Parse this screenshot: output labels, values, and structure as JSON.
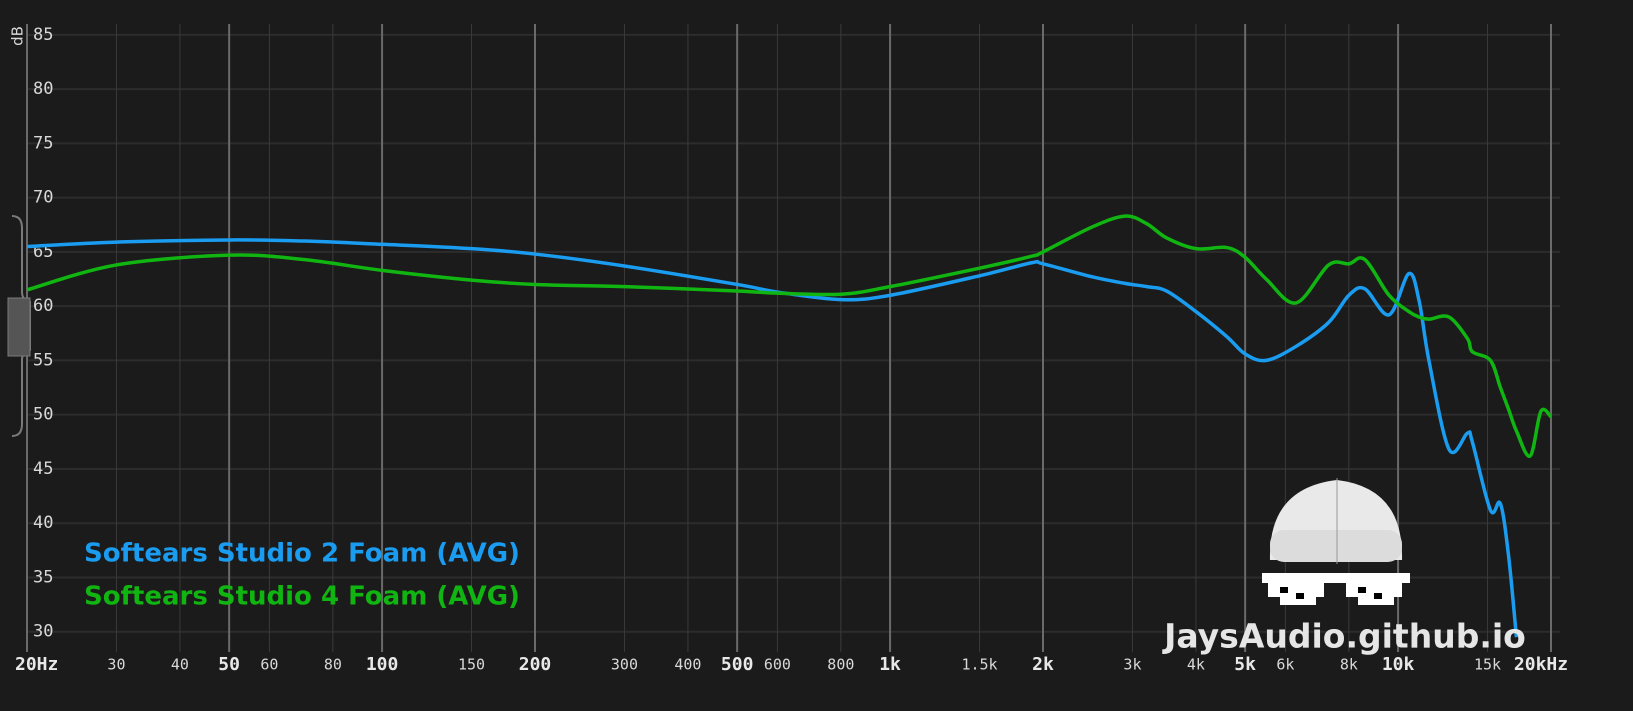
{
  "chart_data": {
    "type": "line",
    "y_label": "dB",
    "x_scale": "log",
    "grid": true,
    "legend": "bottom-left",
    "watermark": "JaysAudio.github.io",
    "xlim": [
      20,
      20000
    ],
    "ylim": [
      28.5,
      86
    ],
    "yticks": [
      30,
      35,
      40,
      45,
      50,
      55,
      60,
      65,
      70,
      75,
      80,
      85
    ],
    "xticks": [
      {
        "value": 20,
        "label": "20Hz"
      },
      30,
      40,
      50,
      60,
      80,
      100,
      150,
      200,
      300,
      400,
      500,
      600,
      800,
      {
        "value": 1000,
        "label": "1k"
      },
      {
        "value": 1500,
        "label": "1.5k"
      },
      {
        "value": 2000,
        "label": "2k"
      },
      {
        "value": 3000,
        "label": "3k"
      },
      {
        "value": 4000,
        "label": "4k"
      },
      {
        "value": 5000,
        "label": "5k"
      },
      {
        "value": 6000,
        "label": "6k"
      },
      {
        "value": 8000,
        "label": "8k"
      },
      {
        "value": 10000,
        "label": "10k"
      },
      {
        "value": 15000,
        "label": "15k"
      },
      {
        "value": 20000,
        "label": "20kHz"
      }
    ],
    "major_xticks": [
      20,
      50,
      100,
      200,
      500,
      1000,
      2000,
      5000,
      10000,
      20000
    ],
    "x": [
      20,
      30,
      50,
      70,
      100,
      150,
      200,
      300,
      500,
      600,
      800,
      1000,
      1500,
      1900,
      2000,
      2500,
      2900,
      3200,
      3500,
      4000,
      4600,
      5000,
      5500,
      6300,
      7300,
      8000,
      8600,
      9600,
      10500,
      11000,
      11500,
      12600,
      13700,
      14000,
      15200,
      15900,
      16500,
      17100,
      18200,
      19100,
      20000
    ],
    "series": [
      {
        "name": "Softears Studio 2 Foam (AVG)",
        "color": "#1a9cf0",
        "values": [
          65.5,
          65.9,
          66.1,
          66.0,
          65.7,
          65.3,
          64.8,
          63.7,
          62.0,
          61.3,
          60.6,
          61.0,
          62.8,
          64.0,
          63.9,
          62.7,
          62.1,
          61.8,
          61.4,
          59.5,
          57.2,
          55.6,
          55.0,
          56.3,
          58.5,
          61.0,
          61.6,
          59.2,
          63.0,
          60.5,
          55.0,
          46.8,
          48.3,
          47.5,
          41.2,
          41.8,
          37.0,
          29.5,
          null,
          null,
          null
        ]
      },
      {
        "name": "Softears Studio 4 Foam (AVG)",
        "color": "#11b511",
        "values": [
          61.5,
          63.8,
          64.7,
          64.3,
          63.3,
          62.4,
          62.0,
          61.8,
          61.4,
          61.2,
          61.1,
          61.8,
          63.5,
          64.6,
          65.0,
          67.3,
          68.3,
          67.6,
          66.3,
          65.3,
          65.4,
          64.5,
          62.5,
          60.3,
          63.8,
          63.9,
          64.3,
          61.0,
          59.5,
          59.0,
          58.8,
          59.0,
          57.0,
          55.8,
          55.0,
          52.5,
          50.5,
          48.5,
          46.2,
          50.3,
          49.8
        ]
      }
    ]
  }
}
